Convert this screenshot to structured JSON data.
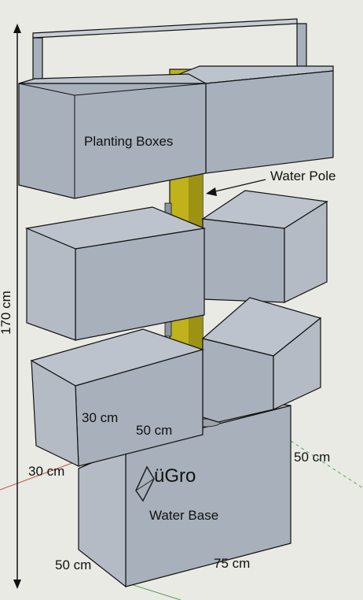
{
  "labels": {
    "planting_boxes": "Planting Boxes",
    "water_pole": "Water Pole",
    "water_base": "Water Base",
    "logo": "üGro"
  },
  "dimensions": {
    "height": "170 cm",
    "box_depth": "30 cm",
    "box_width": "50 cm",
    "base_depth": "30 cm",
    "base_height": "50 cm",
    "base_front_width": "50 cm",
    "base_side_width": "75 cm"
  },
  "colors": {
    "background": "#e9eae3",
    "box_face": "#a7b0bb",
    "box_top": "#c9ced6",
    "box_inner": "#bcc3cc",
    "pole": "#bfb21a",
    "pole_shadow": "#8f8410",
    "edge": "#111111",
    "axis_red": "#c85050",
    "axis_green": "#5aa05a"
  }
}
